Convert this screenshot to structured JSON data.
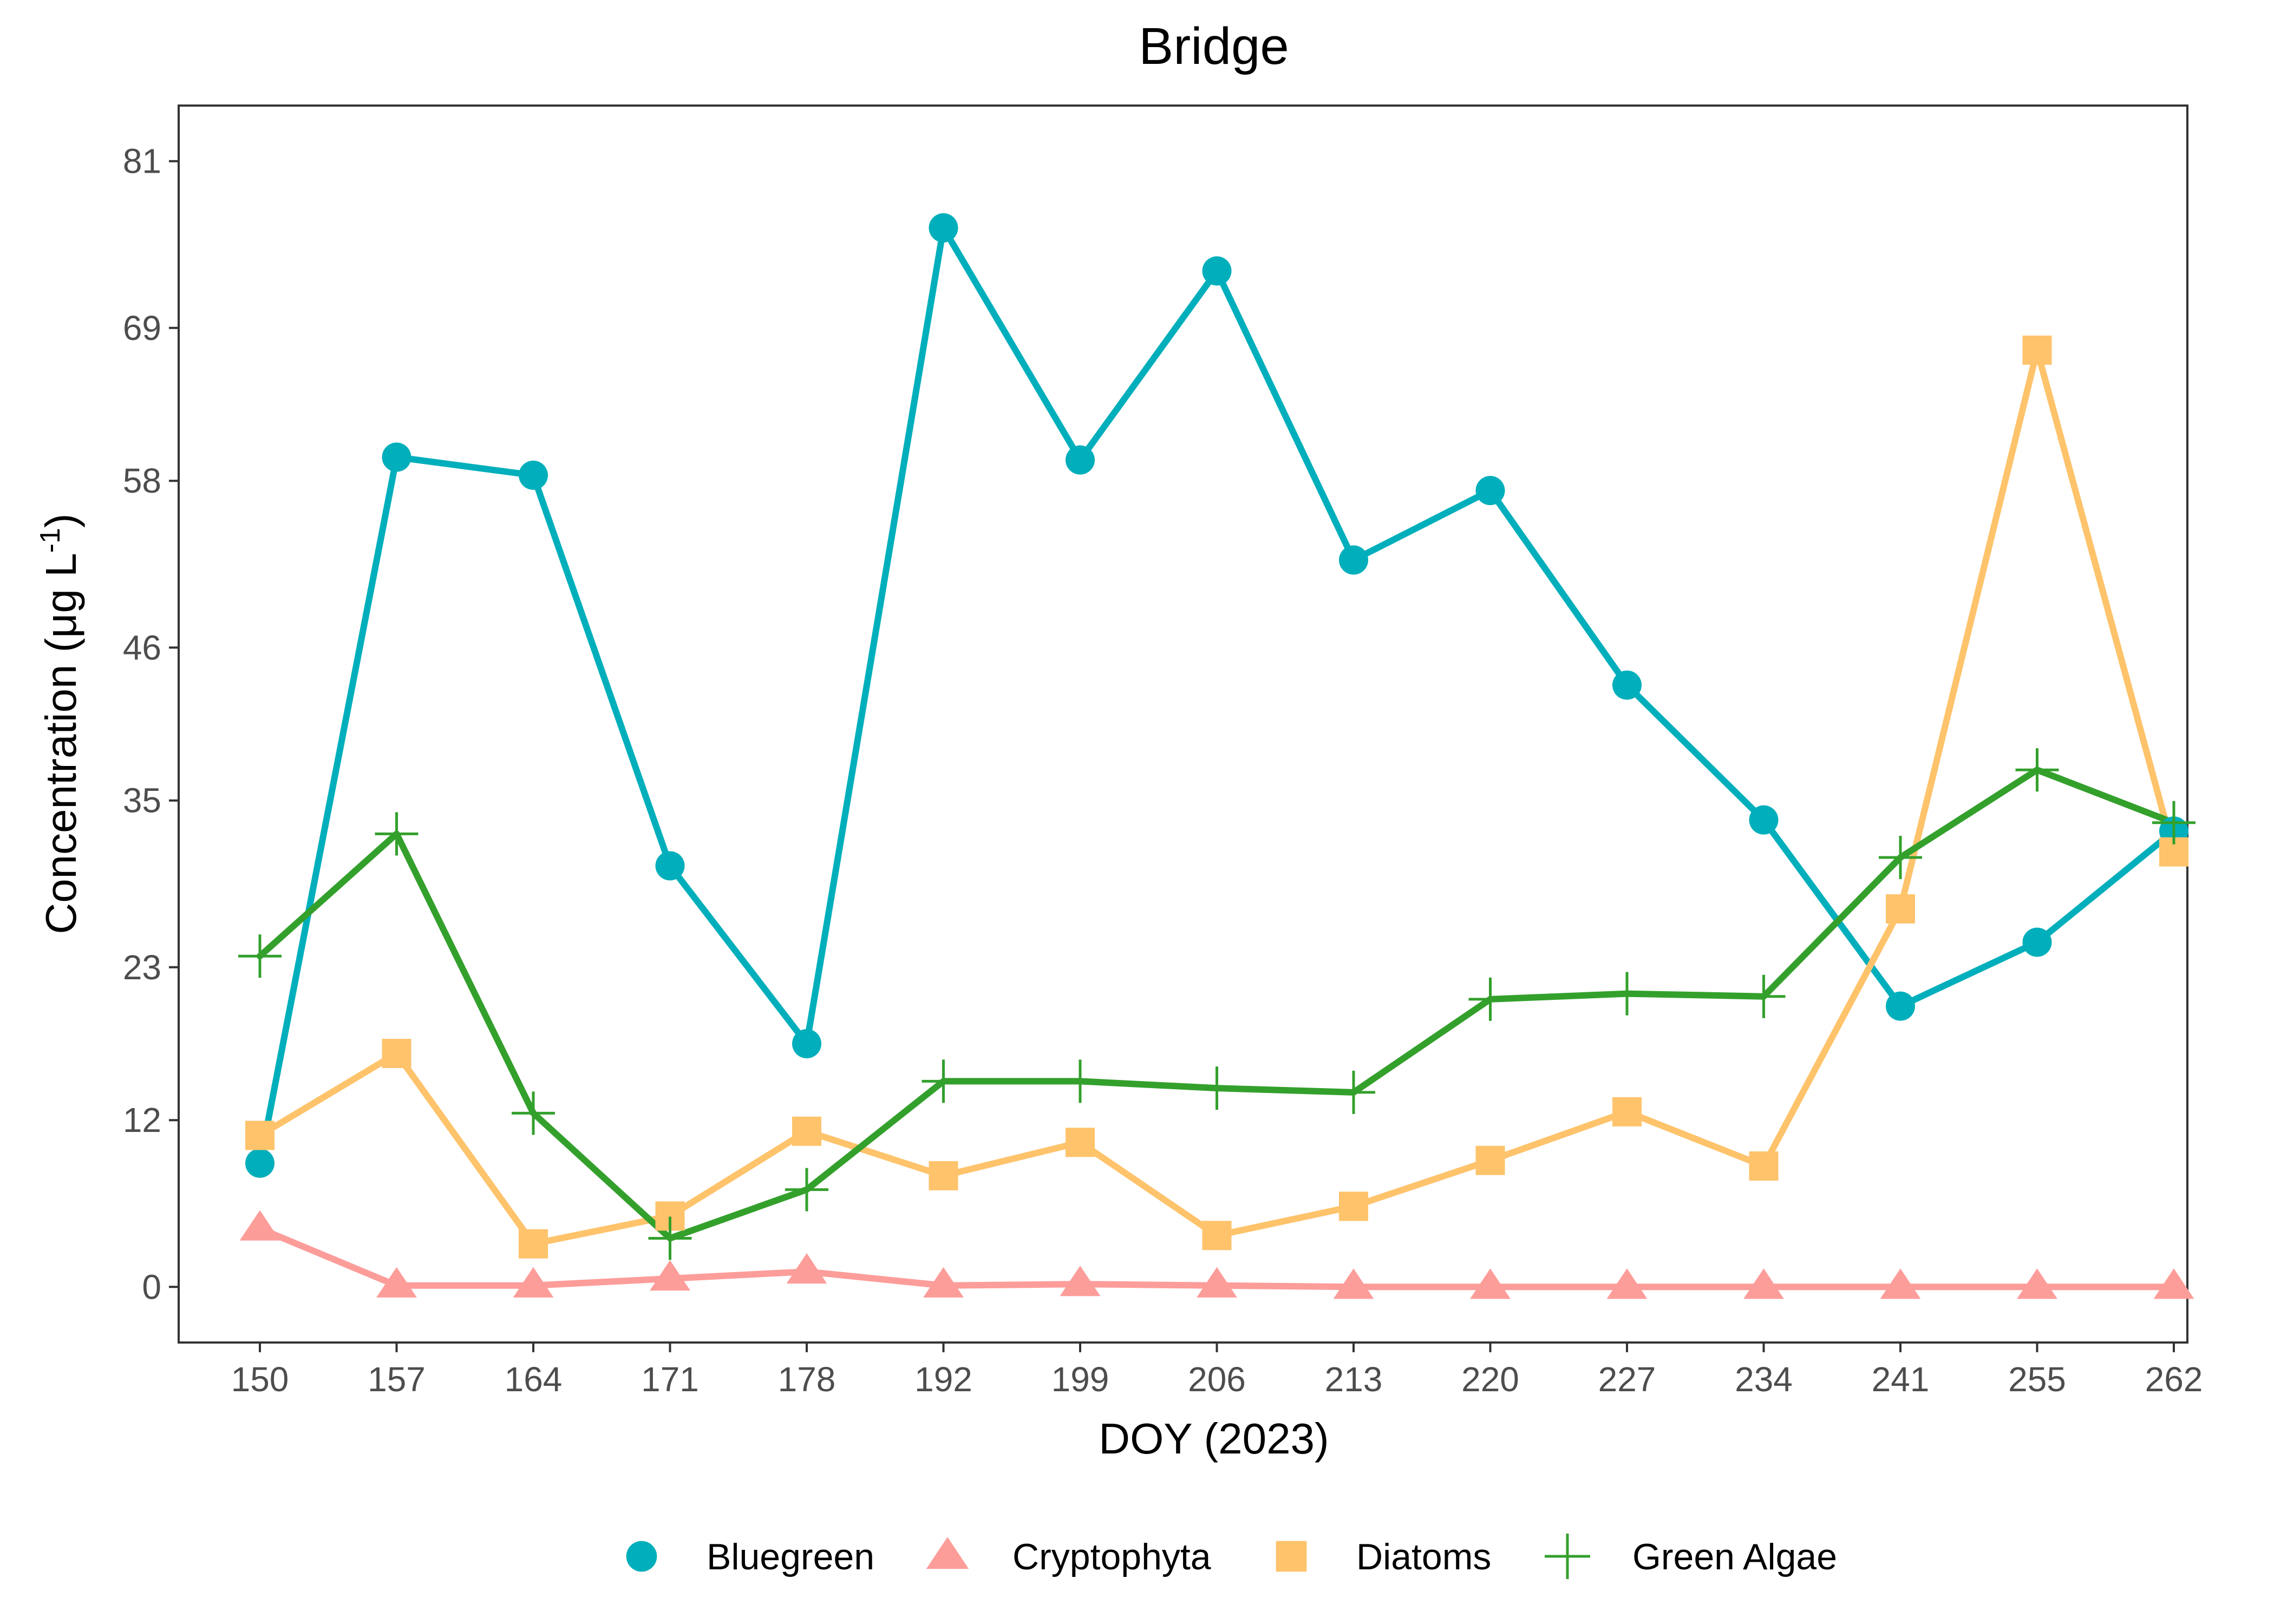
{
  "chart_data": {
    "type": "line",
    "title": "Bridge",
    "xlabel": "DOY (2023)",
    "ylabel": "Concentration (μg L-1)",
    "ylabel_parts": {
      "main": "Concentration (μg L",
      "sup": "-1",
      "close": ")"
    },
    "categories": [
      "150",
      "157",
      "164",
      "171",
      "178",
      "192",
      "199",
      "206",
      "213",
      "220",
      "227",
      "234",
      "241",
      "255",
      "262"
    ],
    "yticks": [
      0,
      12,
      23,
      35,
      46,
      58,
      69,
      81
    ],
    "ylim": [
      -4,
      85
    ],
    "grid": false,
    "legend_position": "bottom",
    "series": [
      {
        "name": "Bluegreen",
        "color": "#00AFBB",
        "marker": "circle",
        "values": [
          8.9,
          59.7,
          58.4,
          30.3,
          17.5,
          76.2,
          59.5,
          73.1,
          52.3,
          57.3,
          43.3,
          33.6,
          20.2,
          24.8,
          32.8
        ]
      },
      {
        "name": "Cryptophyta",
        "color": "#FC9D9A",
        "marker": "triangle",
        "values": [
          4.2,
          0.1,
          0.1,
          0.6,
          1.1,
          0.1,
          0.2,
          0.1,
          0.0,
          0.0,
          0.0,
          0.0,
          0.0,
          0.0,
          0.0
        ]
      },
      {
        "name": "Diatoms",
        "color": "#FEC36B",
        "marker": "square",
        "values": [
          10.9,
          16.8,
          3.1,
          5.1,
          11.2,
          8.0,
          10.4,
          3.7,
          5.8,
          9.1,
          12.6,
          8.7,
          27.2,
          67.4,
          31.3
        ]
      },
      {
        "name": "Green Algae",
        "color": "#33A02C",
        "marker": "plus",
        "values": [
          23.8,
          32.6,
          12.5,
          3.5,
          7.0,
          14.8,
          14.8,
          14.3,
          14.0,
          20.7,
          21.1,
          20.9,
          30.9,
          37.2,
          33.4
        ]
      }
    ]
  }
}
